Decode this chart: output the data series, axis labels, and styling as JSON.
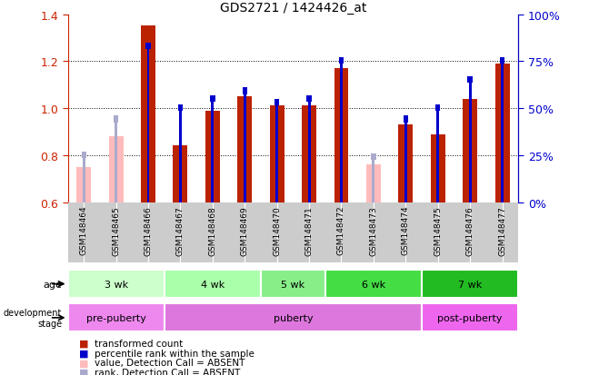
{
  "title": "GDS2721 / 1424426_at",
  "samples": [
    "GSM148464",
    "GSM148465",
    "GSM148466",
    "GSM148467",
    "GSM148468",
    "GSM148469",
    "GSM148470",
    "GSM148471",
    "GSM148472",
    "GSM148473",
    "GSM148474",
    "GSM148475",
    "GSM148476",
    "GSM148477"
  ],
  "transformed_count": [
    0.75,
    0.88,
    1.35,
    0.84,
    0.99,
    1.05,
    1.01,
    1.01,
    1.17,
    0.76,
    0.93,
    0.89,
    1.04,
    1.19
  ],
  "percentile_rank": [
    25,
    44,
    83,
    50,
    55,
    59,
    53,
    55,
    75,
    24,
    44,
    50,
    65,
    75
  ],
  "absent": [
    true,
    true,
    false,
    false,
    false,
    false,
    false,
    false,
    false,
    true,
    false,
    false,
    false,
    false
  ],
  "ylim": [
    0.6,
    1.4
  ],
  "yticks": [
    0.6,
    0.8,
    1.0,
    1.2,
    1.4
  ],
  "y2lim": [
    0,
    100
  ],
  "y2ticks": [
    0,
    25,
    50,
    75,
    100
  ],
  "y2ticklabels": [
    "0%",
    "25%",
    "50%",
    "75%",
    "100%"
  ],
  "bar_color_present": "#bb2200",
  "bar_color_absent": "#ffbbbb",
  "rank_color_present": "#0000cc",
  "rank_color_absent": "#aaaacc",
  "age_groups": [
    {
      "label": "3 wk",
      "start": 0,
      "end": 3,
      "color": "#ccffcc"
    },
    {
      "label": "4 wk",
      "start": 3,
      "end": 6,
      "color": "#aaffaa"
    },
    {
      "label": "5 wk",
      "start": 6,
      "end": 8,
      "color": "#88ee88"
    },
    {
      "label": "6 wk",
      "start": 8,
      "end": 11,
      "color": "#44dd44"
    },
    {
      "label": "7 wk",
      "start": 11,
      "end": 14,
      "color": "#22bb22"
    }
  ],
  "dev_groups": [
    {
      "label": "pre-puberty",
      "start": 0,
      "end": 3,
      "color": "#ee88ee"
    },
    {
      "label": "puberty",
      "start": 3,
      "end": 11,
      "color": "#dd77dd"
    },
    {
      "label": "post-puberty",
      "start": 11,
      "end": 14,
      "color": "#ee66ee"
    }
  ],
  "legend_items": [
    {
      "label": "transformed count",
      "color": "#bb2200"
    },
    {
      "label": "percentile rank within the sample",
      "color": "#0000cc"
    },
    {
      "label": "value, Detection Call = ABSENT",
      "color": "#ffbbbb"
    },
    {
      "label": "rank, Detection Call = ABSENT",
      "color": "#aaaacc"
    }
  ]
}
